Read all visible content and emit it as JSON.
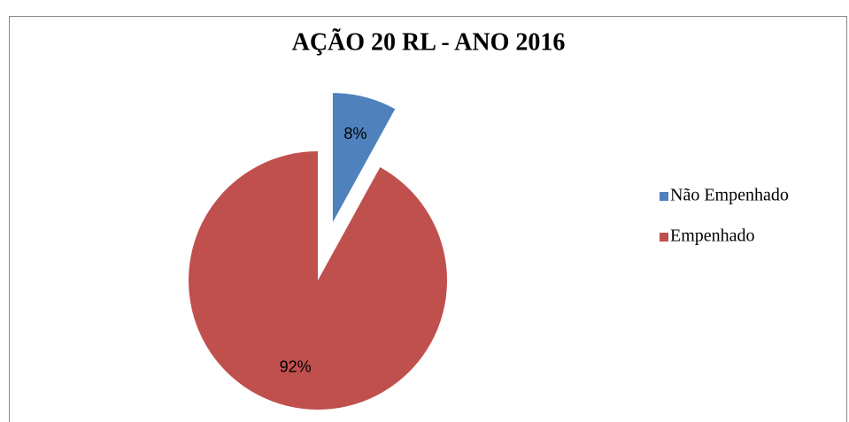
{
  "chart_data": {
    "type": "pie",
    "title": "AÇÃO 20 RL - ANO 2016",
    "categories": [
      "Não Empenhado",
      "Empenhado"
    ],
    "values": [
      8,
      92
    ],
    "value_labels": [
      "8%",
      "92%"
    ],
    "colors": [
      "#4f81bd",
      "#c0504d"
    ],
    "exploded": [
      true,
      false
    ],
    "legend": "right"
  }
}
